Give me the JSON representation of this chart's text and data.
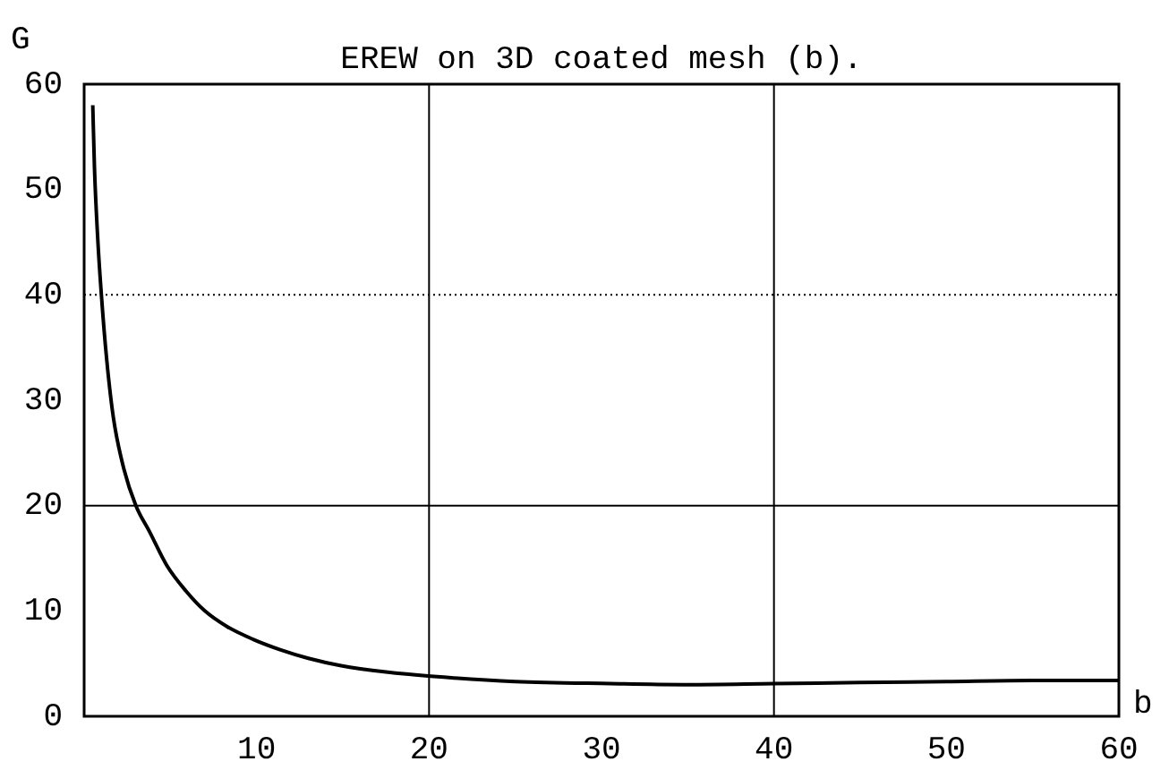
{
  "chart_data": {
    "type": "line",
    "title": "EREW on 3D coated mesh (b).",
    "xlabel": "b",
    "ylabel": "G",
    "x": [
      0.5,
      0.6,
      0.8,
      1,
      1.3,
      1.7,
      2.3,
      3,
      3.8,
      4.8,
      5.9,
      7,
      8.3,
      9.8,
      11.4,
      13,
      14.9,
      17.5,
      20.1,
      25,
      30.5,
      35,
      40,
      45,
      50,
      55,
      60
    ],
    "series": [
      {
        "color": "#000000",
        "values": [
          58,
          52,
          45,
          40,
          34,
          28.3,
          23.5,
          20,
          17.5,
          14.3,
          11.9,
          10,
          8.5,
          7.3,
          6.3,
          5.5,
          4.8,
          4.2,
          3.8,
          3.3,
          3.1,
          3.0,
          3.1,
          3.2,
          3.3,
          3.4,
          3.4
        ]
      }
    ],
    "xlim": [
      0,
      60
    ],
    "xticks": [
      10,
      20,
      30,
      40,
      50,
      60
    ],
    "ylim": [
      0,
      60
    ],
    "yticks": [
      0,
      10,
      20,
      30,
      40,
      50,
      60
    ],
    "grid": false,
    "legend": false,
    "marker": "none",
    "line_style": "solid",
    "ref_lines": [
      {
        "axis": "x",
        "value": 20,
        "line_style": "solid"
      },
      {
        "axis": "x",
        "value": 40,
        "line_style": "solid"
      },
      {
        "axis": "y",
        "value": 20,
        "line_style": "solid"
      },
      {
        "axis": "y",
        "value": 40,
        "line_style": "dotted"
      }
    ]
  }
}
